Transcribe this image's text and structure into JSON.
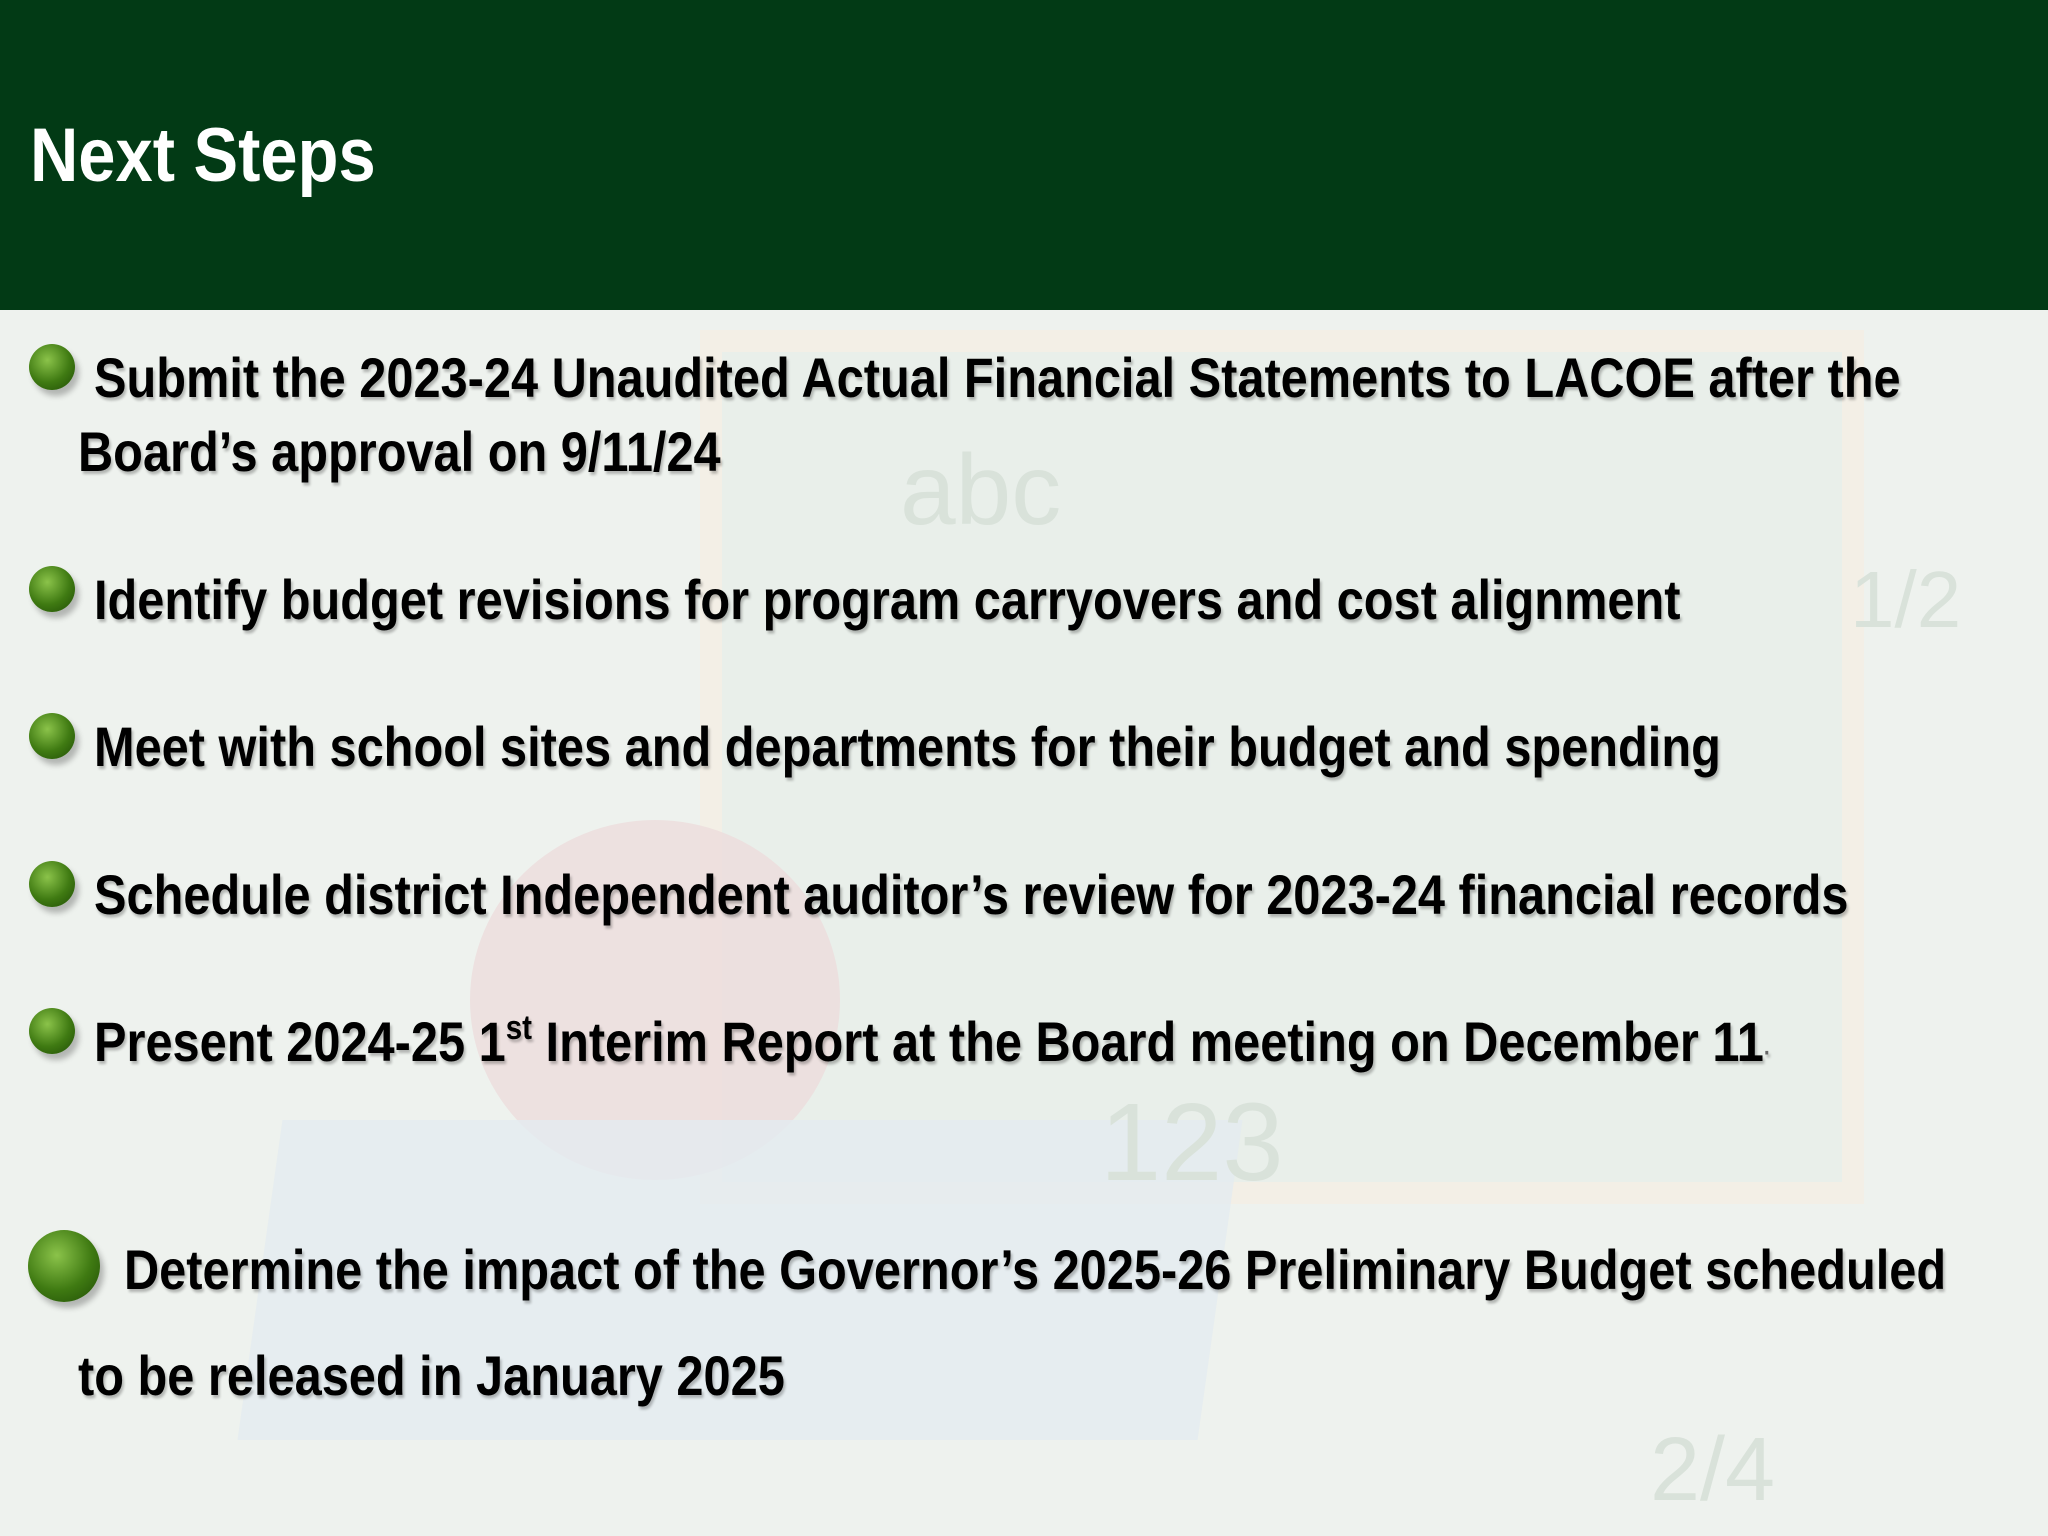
{
  "header": {
    "title": "Next Steps",
    "background_color": "#023a15"
  },
  "bullets": [
    {
      "lines": [
        "Submit the 2023-24 Unaudited Actual Financial Statements to LACOE after the",
        "Board’s approval on 9/11/24"
      ]
    },
    {
      "lines": [
        "Identify budget revisions for program carryovers and cost alignment"
      ]
    },
    {
      "lines": [
        "Meet with school sites and departments for their budget and spending"
      ]
    },
    {
      "lines": [
        "Schedule district Independent auditor’s review for 2023-24 financial records"
      ]
    },
    {
      "prefix": "Present  2024-25 1",
      "sup": "st",
      "suffix": " Interim Report at the Board meeting on December 11",
      "trailing": "·"
    },
    {
      "lines": [
        "Determine the impact of the Governor’s 2025-26 Preliminary Budget scheduled",
        "to be released in January 2025"
      ]
    }
  ],
  "bullet_icon": "green-sphere-bullet",
  "background_image": "chalkboard-apple-books-decoration",
  "background_chalk": {
    "letters": "abc",
    "numbers": "123",
    "fractions": [
      "1/2",
      "2/4"
    ]
  }
}
